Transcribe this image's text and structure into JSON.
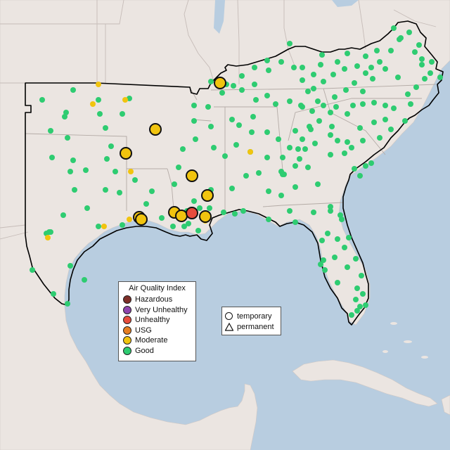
{
  "legend": {
    "title": "Air Quality Index",
    "items": [
      {
        "label": "Hazardous",
        "color": "#7e2f28"
      },
      {
        "label": "Very Unhealthy",
        "color": "#8e44ad"
      },
      {
        "label": "Unhealthy",
        "color": "#e74c3c"
      },
      {
        "label": "USG",
        "color": "#e67e22"
      },
      {
        "label": "Moderate",
        "color": "#f1c40f"
      },
      {
        "label": "Good",
        "color": "#2ecc71"
      }
    ]
  },
  "shape_legend": {
    "temporary": "temporary",
    "permanent": "permanent"
  },
  "colors": {
    "water": "#b8cde0",
    "land": "#ebe5e1",
    "state_border": "#c6bcb8",
    "region_outline": "#000000"
  },
  "stations": {
    "good_count": 230,
    "moderate_small_count": 9,
    "moderate_large_count": 11,
    "unhealthy_large_count": 1
  }
}
